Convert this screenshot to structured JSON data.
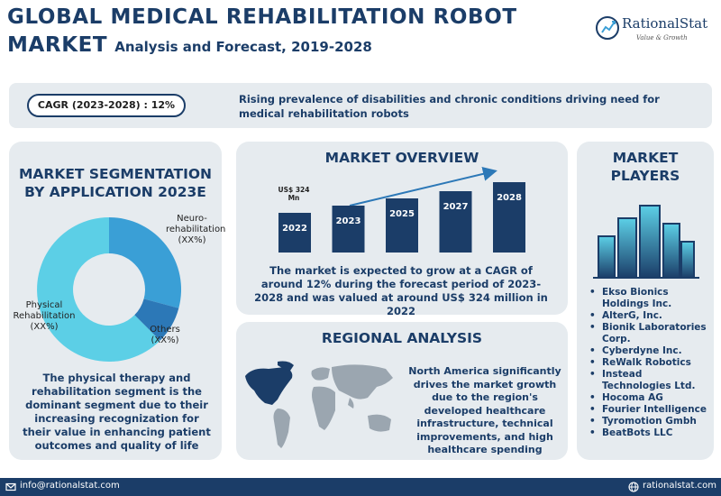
{
  "header": {
    "title_line1": "GLOBAL MEDICAL REHABILITATION ROBOT",
    "title_line2_big": "MARKET",
    "title_line2_sub": "Analysis and Forecast, 2019-2028"
  },
  "logo": {
    "name": "RationalStat",
    "tagline": "Value & Growth"
  },
  "banner": {
    "cagr": "CAGR (2023-2028) : 12%",
    "text": "Rising prevalence of disabilities and chronic conditions driving need for medical rehabilitation robots"
  },
  "segmentation": {
    "title": "MARKET SEGMENTATION BY APPLICATION 2023E",
    "labels": {
      "neuro": "Neuro-rehabilitation (XX%)",
      "physical": "Physical Rehabilitation (XX%)",
      "others": "Others (XX%)"
    },
    "description": "The physical therapy and rehabilitation segment is the dominant segment due to their increasing recognization for their value in enhancing patient outcomes and quality of life",
    "colors": {
      "physical": "#5ccfe6",
      "neuro": "#3a9fd6",
      "others": "#2c78b7"
    }
  },
  "overview": {
    "title": "MARKET OVERVIEW",
    "value_label": "US$ 324 Mn",
    "years": [
      "2022",
      "2023",
      "2025",
      "2027",
      "2028"
    ],
    "description": "The market is expected to grow at a CAGR of around 12% during the forecast period of 2023-2028 and was valued at around US$ 324 million in 2022",
    "bar_color": "#1b3d68"
  },
  "regional": {
    "title": "REGIONAL ANALYSIS",
    "description": "North America significantly drives the market growth due to the region's developed healthcare infrastructure, technical improvements, and high healthcare spending"
  },
  "players": {
    "title": "MARKET PLAYERS",
    "items": [
      "Ekso Bionics Holdings Inc.",
      "AlterG, Inc.",
      "Bionik Laboratories Corp.",
      "Cyberdyne Inc.",
      "ReWalk Robotics",
      "Instead Technologies Ltd.",
      "Hocoma AG",
      "Fourier Intelligence",
      "Tyromotion Gmbh",
      "BeatBots LLC"
    ]
  },
  "footer": {
    "email": "info@rationalstat.com",
    "website": "rationalstat.com"
  }
}
